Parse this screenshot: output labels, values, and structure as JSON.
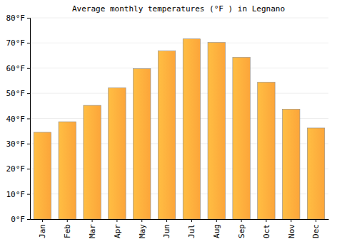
{
  "chart_data": {
    "type": "bar",
    "title": "Average monthly temperatures (°F ) in Legnano",
    "categories": [
      "Jan",
      "Feb",
      "Mar",
      "Apr",
      "May",
      "Jun",
      "Jul",
      "Aug",
      "Sep",
      "Oct",
      "Nov",
      "Dec"
    ],
    "values": [
      34.5,
      38.7,
      45.2,
      52.2,
      59.8,
      66.8,
      71.6,
      70.2,
      64.3,
      54.4,
      43.7,
      36.2
    ],
    "color": "#fca53a",
    "ylim": [
      0,
      80
    ],
    "yticks": [
      {
        "value": 0,
        "label": "0°F"
      },
      {
        "value": 10,
        "label": "10°F"
      },
      {
        "value": 20,
        "label": "20°F"
      },
      {
        "value": 30,
        "label": "30°F"
      },
      {
        "value": 40,
        "label": "40°F"
      },
      {
        "value": 50,
        "label": "50°F"
      },
      {
        "value": 60,
        "label": "60°F"
      },
      {
        "value": 70,
        "label": "70°F"
      },
      {
        "value": 80,
        "label": "80°F"
      }
    ],
    "grid": true
  }
}
